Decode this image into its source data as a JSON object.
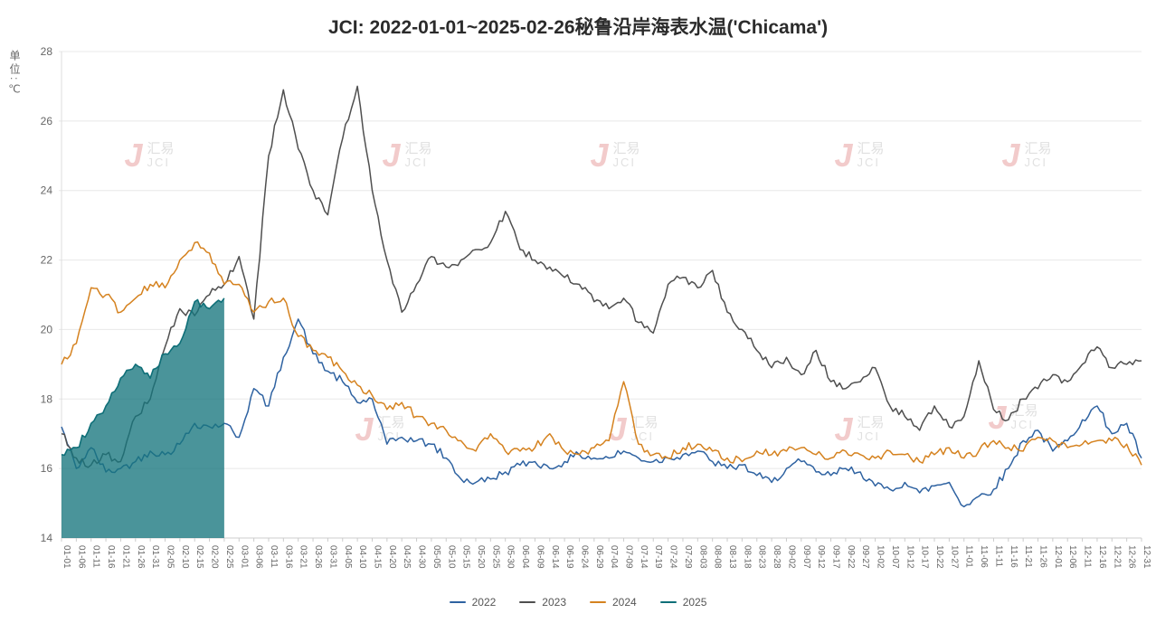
{
  "title": "JCI: 2022-01-01~2025-02-26秘鲁沿岸海表水温('Chicama')",
  "y_axis_unit": "单位:℃",
  "watermark": {
    "logo_glyph": "J",
    "name": "汇易",
    "abbr": "JCI"
  },
  "chart_data": {
    "type": "line",
    "title": "JCI: 2022-01-01~2025-02-26秘鲁沿岸海表水温('Chicama')",
    "ylabel": "单位:℃",
    "ylim": [
      14,
      28
    ],
    "yticks": [
      14,
      16,
      18,
      20,
      22,
      24,
      26,
      28
    ],
    "grid": "horizontal",
    "legend_position": "bottom",
    "x": [
      "01-01",
      "01-06",
      "01-11",
      "01-16",
      "01-21",
      "01-26",
      "01-31",
      "02-05",
      "02-10",
      "02-15",
      "02-20",
      "02-25",
      "03-01",
      "03-06",
      "03-11",
      "03-16",
      "03-21",
      "03-26",
      "03-31",
      "04-05",
      "04-10",
      "04-15",
      "04-20",
      "04-25",
      "04-30",
      "05-05",
      "05-10",
      "05-15",
      "05-20",
      "05-25",
      "05-30",
      "06-04",
      "06-09",
      "06-14",
      "06-19",
      "06-24",
      "06-29",
      "07-04",
      "07-09",
      "07-14",
      "07-19",
      "07-24",
      "07-29",
      "08-03",
      "08-08",
      "08-13",
      "08-18",
      "08-23",
      "08-28",
      "09-02",
      "09-07",
      "09-12",
      "09-17",
      "09-22",
      "09-27",
      "10-02",
      "10-07",
      "10-12",
      "10-17",
      "10-22",
      "10-27",
      "11-01",
      "11-06",
      "11-11",
      "11-16",
      "11-21",
      "11-26",
      "12-01",
      "12-06",
      "12-11",
      "12-16",
      "12-21",
      "12-26",
      "12-31"
    ],
    "series": [
      {
        "name": "2022",
        "color": "#2e62a1",
        "values": [
          17.2,
          16.0,
          16.6,
          15.9,
          16.0,
          16.2,
          16.5,
          16.4,
          16.7,
          17.3,
          17.2,
          17.3,
          16.9,
          18.3,
          17.8,
          19.2,
          20.3,
          19.3,
          18.8,
          18.5,
          17.9,
          18.0,
          16.7,
          16.9,
          16.8,
          16.7,
          16.3,
          15.7,
          15.6,
          15.7,
          15.9,
          16.1,
          16.2,
          16.0,
          16.2,
          16.4,
          16.3,
          16.3,
          16.5,
          16.3,
          16.2,
          16.3,
          16.4,
          16.5,
          16.2,
          16.0,
          16.1,
          15.8,
          15.6,
          16.0,
          16.2,
          15.9,
          15.8,
          16.0,
          15.9,
          15.5,
          15.4,
          15.6,
          15.3,
          15.5,
          15.6,
          14.9,
          15.2,
          15.4,
          16.0,
          16.8,
          17.1,
          16.5,
          16.8,
          17.4,
          17.8,
          17.0,
          17.3,
          16.3
        ]
      },
      {
        "name": "2023",
        "color": "#4f4f4f",
        "values": [
          17.0,
          16.3,
          16.1,
          16.4,
          16.2,
          17.5,
          18.0,
          19.5,
          20.6,
          20.4,
          21.0,
          21.3,
          22.1,
          20.3,
          25.0,
          26.9,
          25.2,
          24.0,
          23.3,
          25.5,
          27.0,
          24.0,
          22.0,
          20.5,
          21.3,
          22.1,
          21.8,
          22.0,
          22.3,
          22.5,
          23.4,
          22.3,
          22.0,
          21.8,
          21.5,
          21.3,
          20.8,
          20.6,
          20.9,
          20.2,
          19.9,
          21.3,
          21.5,
          21.2,
          21.7,
          20.5,
          20.0,
          19.4,
          18.9,
          19.2,
          18.7,
          19.4,
          18.5,
          18.3,
          18.5,
          18.9,
          17.8,
          17.5,
          17.1,
          17.8,
          17.2,
          17.5,
          19.1,
          17.7,
          17.4,
          18.0,
          18.3,
          18.7,
          18.5,
          19.0,
          19.5,
          18.9,
          19.0,
          19.1
        ]
      },
      {
        "name": "2024",
        "color": "#d5821f",
        "values": [
          19.0,
          19.6,
          21.2,
          21.0,
          20.5,
          20.9,
          21.3,
          21.2,
          22.0,
          22.5,
          22.2,
          21.3,
          21.3,
          20.5,
          20.8,
          20.9,
          19.8,
          19.4,
          19.2,
          18.8,
          18.4,
          18.1,
          17.7,
          17.9,
          17.5,
          17.3,
          17.1,
          16.8,
          16.5,
          17.0,
          16.5,
          16.5,
          16.6,
          17.0,
          16.5,
          16.4,
          16.6,
          16.8,
          18.5,
          16.7,
          16.4,
          16.3,
          16.6,
          16.7,
          16.5,
          16.3,
          16.2,
          16.5,
          16.4,
          16.5,
          16.6,
          16.4,
          16.3,
          16.5,
          16.4,
          16.3,
          16.5,
          16.4,
          16.2,
          16.4,
          16.6,
          16.3,
          16.5,
          16.8,
          16.6,
          16.5,
          16.9,
          16.8,
          16.6,
          16.7,
          16.8,
          16.8,
          16.7,
          16.1
        ]
      },
      {
        "name": "2025",
        "color": "#0f6f78",
        "area_fill": "rgba(23,118,125,0.78)",
        "values": [
          16.4,
          16.6,
          17.3,
          17.8,
          18.6,
          19.0,
          18.6,
          19.3,
          19.6,
          20.8,
          20.6,
          20.9,
          null,
          null,
          null,
          null,
          null,
          null,
          null,
          null,
          null,
          null,
          null,
          null,
          null,
          null,
          null,
          null,
          null,
          null,
          null,
          null,
          null,
          null,
          null,
          null,
          null,
          null,
          null,
          null,
          null,
          null,
          null,
          null,
          null,
          null,
          null,
          null,
          null,
          null,
          null,
          null,
          null,
          null,
          null,
          null,
          null,
          null,
          null,
          null,
          null,
          null,
          null,
          null,
          null,
          null,
          null,
          null,
          null,
          null,
          null,
          null,
          null,
          null
        ]
      }
    ]
  }
}
